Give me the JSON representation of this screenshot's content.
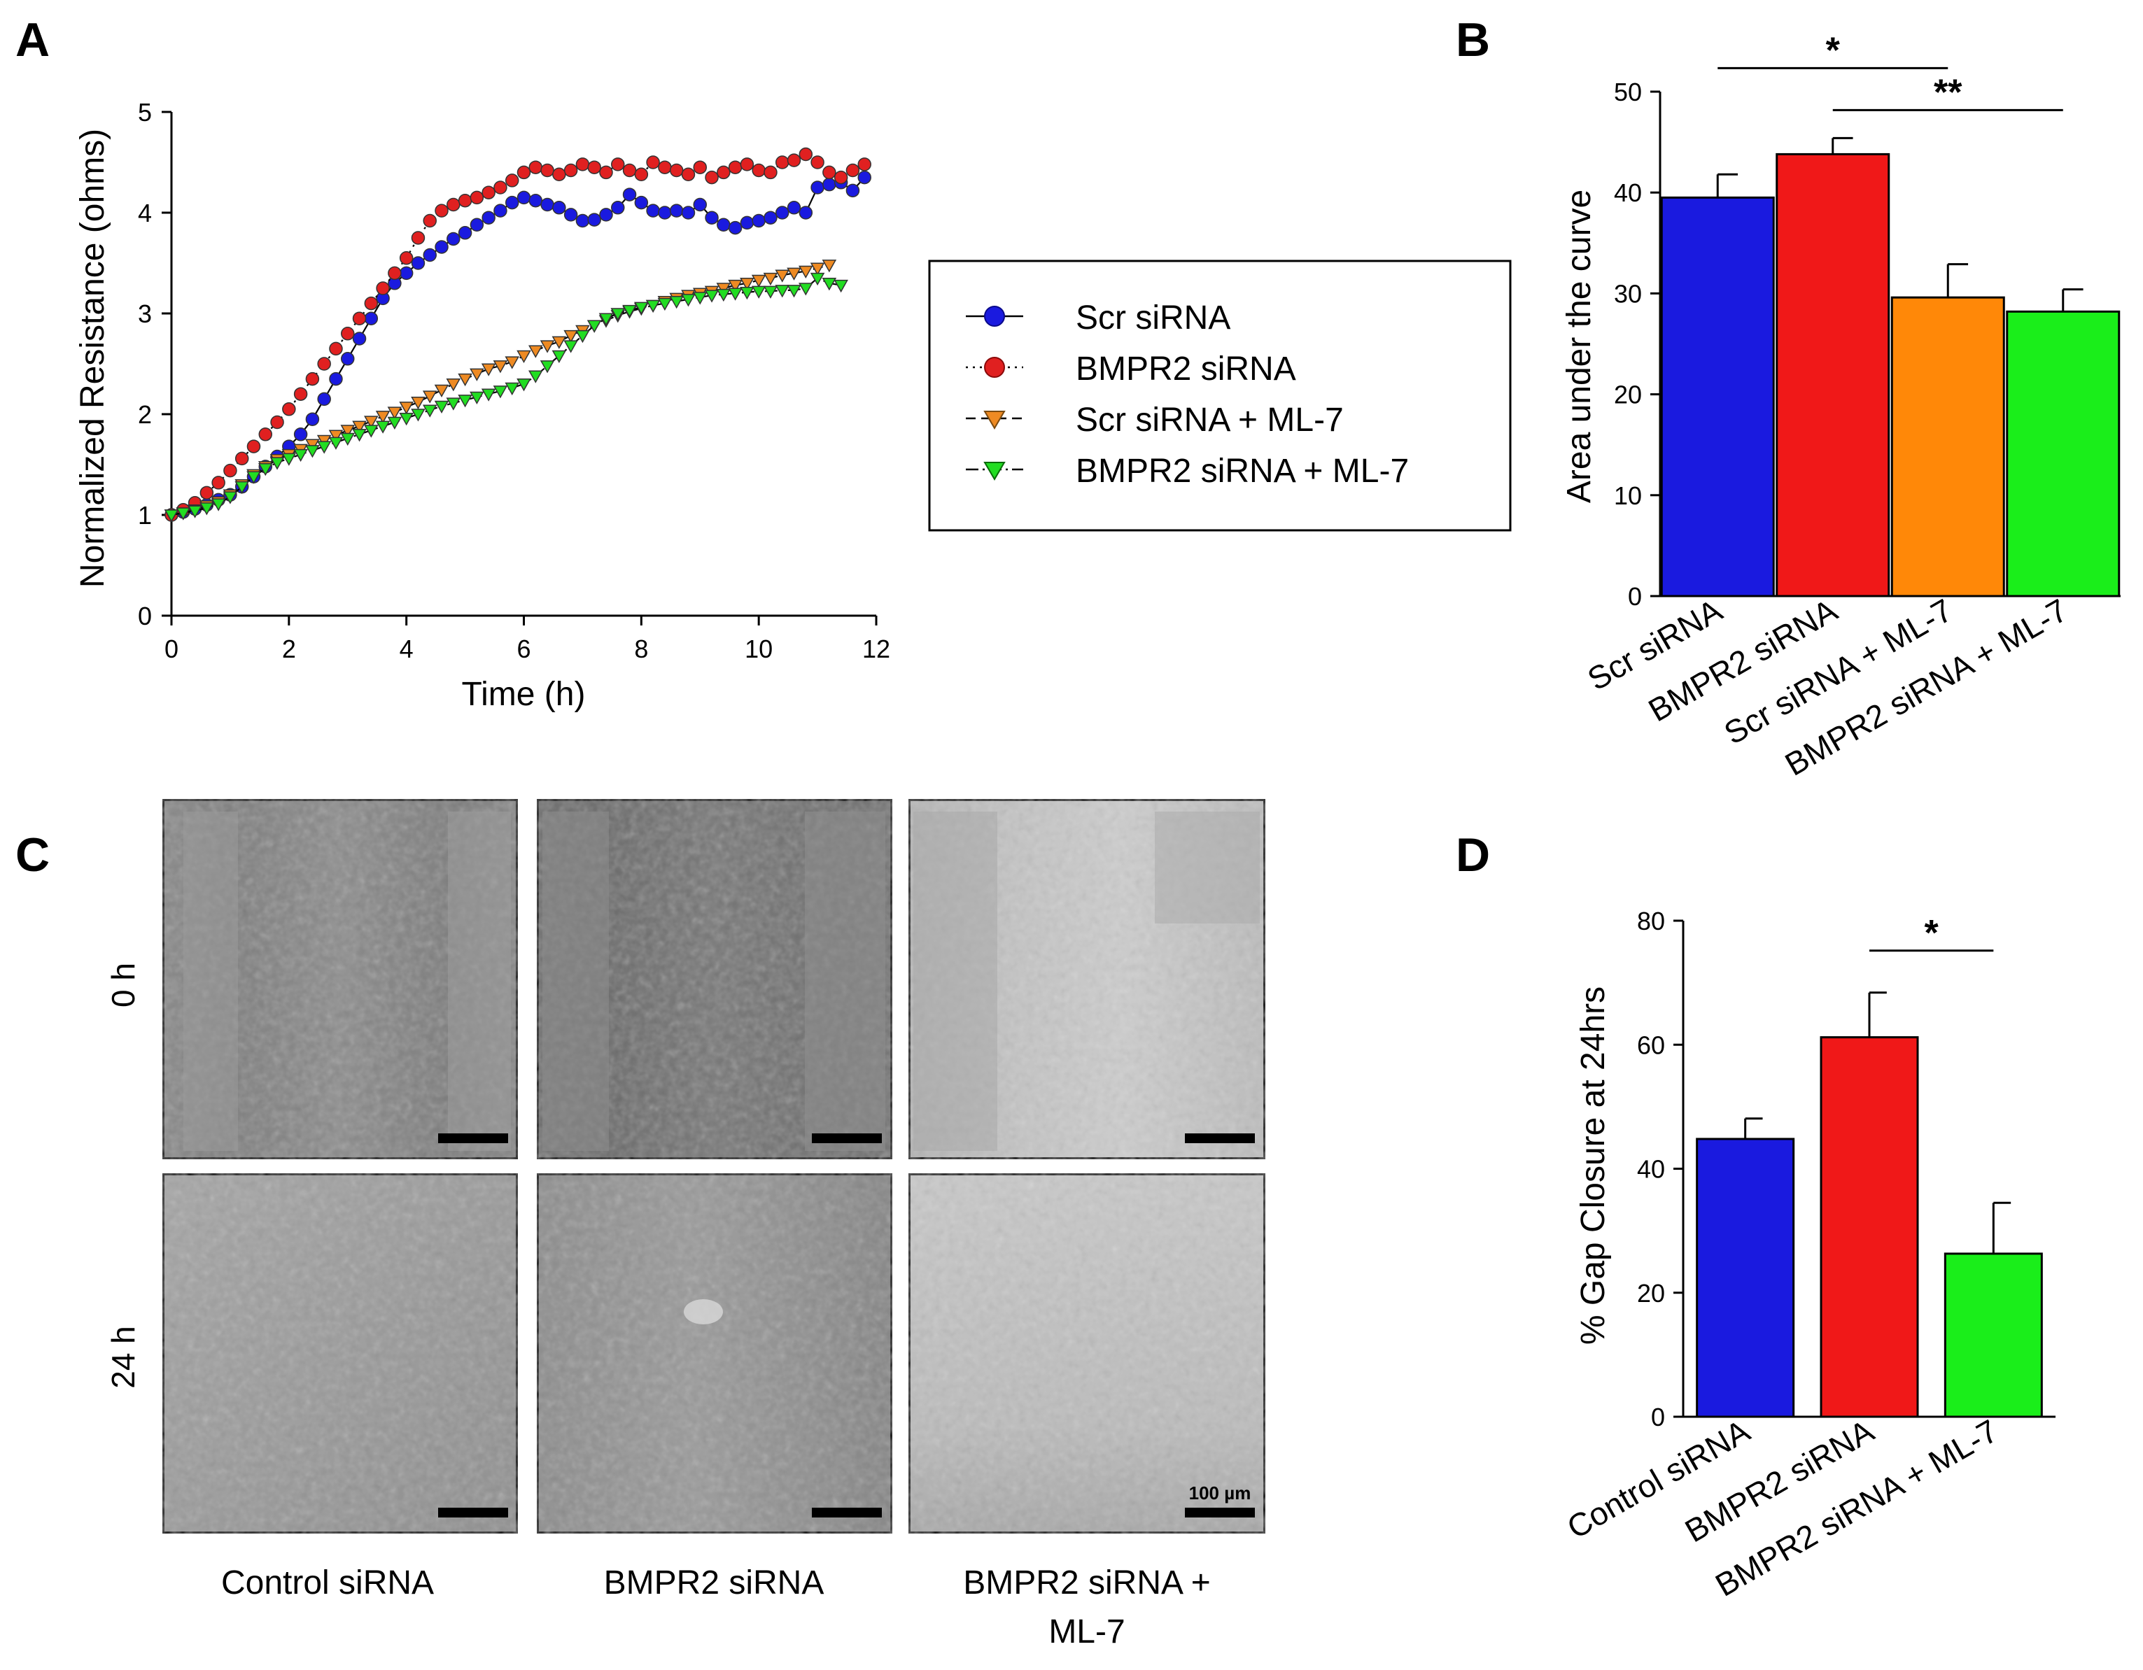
{
  "panel_labels": {
    "a": "A",
    "b": "B",
    "c": "C",
    "d": "D"
  },
  "chart_data": [
    {
      "panel": "A",
      "type": "line",
      "xlabel": "Time (h)",
      "ylabel": "Normalized Resistance (ohms)",
      "xlim": [
        0,
        12
      ],
      "ylim": [
        0,
        5
      ],
      "xticks": [
        0,
        2,
        4,
        6,
        8,
        10,
        12
      ],
      "yticks": [
        0,
        1,
        2,
        3,
        4,
        5
      ],
      "legend": [
        "Scr siRNA",
        "BMPR2 siRNA",
        "Scr siRNA + ML-7",
        "BMPR2 siRNA + ML-7"
      ],
      "series": [
        {
          "name": "Scr siRNA",
          "color": "#1a1adf",
          "marker": "circle",
          "line": "solid",
          "x": [
            0,
            0.2,
            0.4,
            0.6,
            0.8,
            1,
            1.2,
            1.4,
            1.6,
            1.8,
            2,
            2.2,
            2.4,
            2.6,
            2.8,
            3,
            3.2,
            3.4,
            3.6,
            3.8,
            4,
            4.2,
            4.4,
            4.6,
            4.8,
            5,
            5.2,
            5.4,
            5.6,
            5.8,
            6,
            6.2,
            6.4,
            6.6,
            6.8,
            7,
            7.2,
            7.4,
            7.6,
            7.8,
            8,
            8.2,
            8.4,
            8.6,
            8.8,
            9,
            9.2,
            9.4,
            9.6,
            9.8,
            10,
            10.2,
            10.4,
            10.6,
            10.8,
            11,
            11.2,
            11.4,
            11.6,
            11.8
          ],
          "y": [
            1,
            1.03,
            1.06,
            1.1,
            1.15,
            1.2,
            1.28,
            1.38,
            1.48,
            1.58,
            1.68,
            1.8,
            1.95,
            2.15,
            2.35,
            2.55,
            2.75,
            2.95,
            3.15,
            3.3,
            3.4,
            3.5,
            3.58,
            3.66,
            3.74,
            3.8,
            3.88,
            3.95,
            4.02,
            4.1,
            4.15,
            4.12,
            4.08,
            4.05,
            3.98,
            3.92,
            3.93,
            3.98,
            4.05,
            4.18,
            4.1,
            4.02,
            4.0,
            4.02,
            4.0,
            4.08,
            3.95,
            3.88,
            3.85,
            3.9,
            3.92,
            3.95,
            4.0,
            4.05,
            4.0,
            4.25,
            4.28,
            4.3,
            4.22,
            4.35
          ]
        },
        {
          "name": "BMPR2 siRNA",
          "color": "#e02020",
          "marker": "circle",
          "line": "dotted",
          "x": [
            0,
            0.2,
            0.4,
            0.6,
            0.8,
            1,
            1.2,
            1.4,
            1.6,
            1.8,
            2,
            2.2,
            2.4,
            2.6,
            2.8,
            3,
            3.2,
            3.4,
            3.6,
            3.8,
            4,
            4.2,
            4.4,
            4.6,
            4.8,
            5,
            5.2,
            5.4,
            5.6,
            5.8,
            6,
            6.2,
            6.4,
            6.6,
            6.8,
            7,
            7.2,
            7.4,
            7.6,
            7.8,
            8,
            8.2,
            8.4,
            8.6,
            8.8,
            9,
            9.2,
            9.4,
            9.6,
            9.8,
            10,
            10.2,
            10.4,
            10.6,
            10.8,
            11,
            11.2,
            11.4,
            11.6,
            11.8
          ],
          "y": [
            1,
            1.05,
            1.12,
            1.22,
            1.32,
            1.44,
            1.56,
            1.68,
            1.8,
            1.92,
            2.05,
            2.2,
            2.35,
            2.5,
            2.65,
            2.8,
            2.95,
            3.1,
            3.25,
            3.4,
            3.55,
            3.75,
            3.92,
            4.02,
            4.08,
            4.12,
            4.15,
            4.2,
            4.25,
            4.32,
            4.4,
            4.45,
            4.42,
            4.38,
            4.42,
            4.48,
            4.45,
            4.4,
            4.48,
            4.42,
            4.38,
            4.5,
            4.45,
            4.42,
            4.38,
            4.45,
            4.35,
            4.4,
            4.45,
            4.48,
            4.42,
            4.4,
            4.5,
            4.52,
            4.58,
            4.5,
            4.4,
            4.35,
            4.42,
            4.48
          ]
        },
        {
          "name": "Scr siRNA + ML-7",
          "color": "#ee8a22",
          "marker": "triangle-down",
          "line": "dashed",
          "x": [
            0,
            0.2,
            0.4,
            0.6,
            0.8,
            1,
            1.2,
            1.4,
            1.6,
            1.8,
            2,
            2.2,
            2.4,
            2.6,
            2.8,
            3,
            3.2,
            3.4,
            3.6,
            3.8,
            4,
            4.2,
            4.4,
            4.6,
            4.8,
            5,
            5.2,
            5.4,
            5.6,
            5.8,
            6,
            6.2,
            6.4,
            6.6,
            6.8,
            7,
            7.2,
            7.4,
            7.6,
            7.8,
            8,
            8.2,
            8.4,
            8.6,
            8.8,
            9,
            9.2,
            9.4,
            9.6,
            9.8,
            10,
            10.2,
            10.4,
            10.6,
            10.8,
            11,
            11.2
          ],
          "y": [
            1,
            1.02,
            1.05,
            1.09,
            1.13,
            1.2,
            1.3,
            1.4,
            1.48,
            1.55,
            1.6,
            1.65,
            1.7,
            1.74,
            1.79,
            1.84,
            1.88,
            1.93,
            1.98,
            2.02,
            2.07,
            2.12,
            2.18,
            2.24,
            2.3,
            2.35,
            2.4,
            2.45,
            2.48,
            2.52,
            2.58,
            2.63,
            2.68,
            2.72,
            2.78,
            2.83,
            2.88,
            2.93,
            2.98,
            3.02,
            3.05,
            3.08,
            3.12,
            3.15,
            3.18,
            3.2,
            3.22,
            3.25,
            3.28,
            3.3,
            3.33,
            3.35,
            3.38,
            3.4,
            3.42,
            3.45,
            3.48
          ]
        },
        {
          "name": "BMPR2 siRNA + ML-7",
          "color": "#22dd22",
          "marker": "triangle-down",
          "line": "dash-dot",
          "x": [
            0,
            0.2,
            0.4,
            0.6,
            0.8,
            1,
            1.2,
            1.4,
            1.6,
            1.8,
            2,
            2.2,
            2.4,
            2.6,
            2.8,
            3,
            3.2,
            3.4,
            3.6,
            3.8,
            4,
            4.2,
            4.4,
            4.6,
            4.8,
            5,
            5.2,
            5.4,
            5.6,
            5.8,
            6,
            6.2,
            6.4,
            6.6,
            6.8,
            7,
            7.2,
            7.4,
            7.6,
            7.8,
            8,
            8.2,
            8.4,
            8.6,
            8.8,
            9,
            9.2,
            9.4,
            9.6,
            9.8,
            10,
            10.2,
            10.4,
            10.6,
            10.8,
            11,
            11.2,
            11.4
          ],
          "y": [
            1,
            1.02,
            1.04,
            1.07,
            1.11,
            1.18,
            1.28,
            1.38,
            1.46,
            1.52,
            1.56,
            1.6,
            1.64,
            1.68,
            1.72,
            1.76,
            1.8,
            1.84,
            1.88,
            1.92,
            1.96,
            2.0,
            2.04,
            2.08,
            2.11,
            2.14,
            2.17,
            2.2,
            2.23,
            2.26,
            2.3,
            2.38,
            2.48,
            2.58,
            2.68,
            2.78,
            2.88,
            2.95,
            3.0,
            3.03,
            3.06,
            3.08,
            3.1,
            3.12,
            3.14,
            3.16,
            3.18,
            3.19,
            3.2,
            3.21,
            3.22,
            3.22,
            3.23,
            3.23,
            3.25,
            3.35,
            3.3,
            3.28
          ]
        }
      ]
    },
    {
      "panel": "B",
      "type": "bar",
      "ylabel": "Area under the curve",
      "ylim": [
        0,
        50
      ],
      "yticks": [
        0,
        10,
        20,
        30,
        40,
        50
      ],
      "categories": [
        "Scr siRNA",
        "BMPR2 siRNA",
        "Scr siRNA + ML-7",
        "BMPR2 siRNA + ML-7"
      ],
      "values": [
        39.5,
        43.8,
        29.6,
        28.2
      ],
      "errors": [
        2.3,
        1.6,
        3.3,
        2.2
      ],
      "colors": [
        "#1a1adf",
        "#f01818",
        "#ff8808",
        "#1aee1a"
      ],
      "significance": [
        {
          "from": 0,
          "to": 2,
          "label": "*"
        },
        {
          "from": 1,
          "to": 3,
          "label": "**"
        }
      ]
    },
    {
      "panel": "D",
      "type": "bar",
      "ylabel": "% Gap Closure at 24hrs",
      "ylim": [
        0,
        80
      ],
      "yticks": [
        0,
        20,
        40,
        60,
        80
      ],
      "categories": [
        "Control siRNA",
        "BMPR2 siRNA",
        "BMPR2 siRNA + ML-7"
      ],
      "values": [
        44.8,
        61.2,
        26.3
      ],
      "errors": [
        3.3,
        7.2,
        8.2
      ],
      "colors": [
        "#1a1adf",
        "#f01818",
        "#1aee1a"
      ],
      "significance": [
        {
          "from": 1,
          "to": 2,
          "label": "*"
        }
      ]
    }
  ],
  "panel_c": {
    "row_labels": [
      "0 h",
      "24 h"
    ],
    "column_labels": [
      "Control siRNA",
      "BMPR2 siRNA",
      "BMPR2 siRNA +",
      "ML-7"
    ],
    "scale_label": "100 µm"
  }
}
